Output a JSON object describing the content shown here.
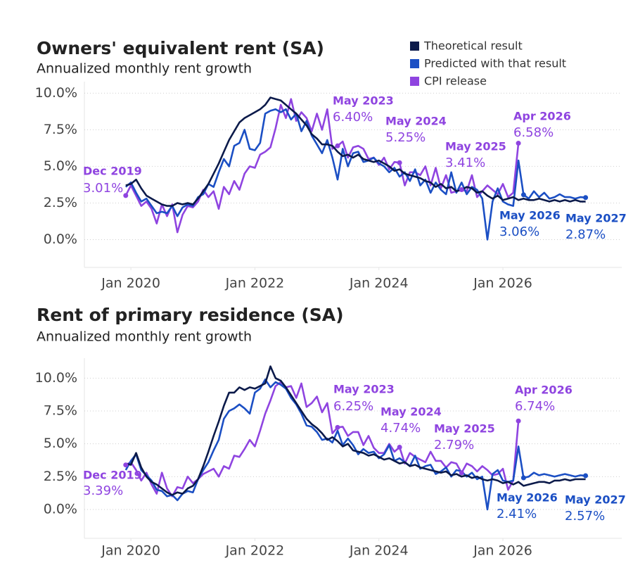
{
  "chart_data": [
    {
      "type": "line",
      "title": "Owners' equivalent rent (SA)",
      "subtitle": "Annualized monthly rent growth",
      "x": [
        "2019-12",
        "2020-01",
        "2020-02",
        "2020-03",
        "2020-04",
        "2020-05",
        "2020-06",
        "2020-07",
        "2020-08",
        "2020-09",
        "2020-10",
        "2020-11",
        "2020-12",
        "2021-01",
        "2021-02",
        "2021-03",
        "2021-04",
        "2021-05",
        "2021-06",
        "2021-07",
        "2021-08",
        "2021-09",
        "2021-10",
        "2021-11",
        "2021-12",
        "2022-01",
        "2022-02",
        "2022-03",
        "2022-04",
        "2022-05",
        "2022-06",
        "2022-07",
        "2022-08",
        "2022-09",
        "2022-10",
        "2022-11",
        "2022-12",
        "2023-01",
        "2023-02",
        "2023-03",
        "2023-04",
        "2023-05",
        "2023-06",
        "2023-07",
        "2023-08",
        "2023-09",
        "2023-10",
        "2023-11",
        "2023-12",
        "2024-01",
        "2024-02",
        "2024-03",
        "2024-04",
        "2024-05",
        "2024-06",
        "2024-07",
        "2024-08",
        "2024-09",
        "2024-10",
        "2024-11",
        "2024-12",
        "2025-01",
        "2025-02",
        "2025-03",
        "2025-04",
        "2025-05",
        "2025-06",
        "2025-07",
        "2025-08",
        "2025-09",
        "2025-10",
        "2025-11",
        "2025-12",
        "2026-01",
        "2026-02",
        "2026-03",
        "2026-04",
        "2026-05",
        "2026-06",
        "2026-07",
        "2026-08",
        "2026-09",
        "2026-10",
        "2026-11",
        "2026-12",
        "2027-01",
        "2027-02",
        "2027-03",
        "2027-04",
        "2027-05"
      ],
      "xlim": [
        "2019-04",
        "2027-12"
      ],
      "xticks": [
        {
          "value": "2020-01",
          "label": "Jan 2020"
        },
        {
          "value": "2022-01",
          "label": "Jan 2022"
        },
        {
          "value": "2024-01",
          "label": "Jan 2024"
        },
        {
          "value": "2026-01",
          "label": "Jan 2026"
        }
      ],
      "ylim": [
        -1.9,
        10.5
      ],
      "yticks": [
        {
          "value": 0,
          "label": "0.0%"
        },
        {
          "value": 2.5,
          "label": "2.5%"
        },
        {
          "value": 5,
          "label": "5.0%"
        },
        {
          "value": 7.5,
          "label": "7.5%"
        },
        {
          "value": 10,
          "label": "10.0%"
        }
      ],
      "grid": true,
      "legend": "top-right",
      "series": [
        {
          "name": "Theoretical result",
          "color": "#0b1a4a",
          "values": [
            3.7,
            3.8,
            4.1,
            3.5,
            3.0,
            2.8,
            2.6,
            2.4,
            2.3,
            2.3,
            2.5,
            2.4,
            2.5,
            2.4,
            2.8,
            3.3,
            3.8,
            4.5,
            5.2,
            6.0,
            6.8,
            7.4,
            8.0,
            8.3,
            8.5,
            8.7,
            8.9,
            9.2,
            9.7,
            9.6,
            9.5,
            9.2,
            8.9,
            8.6,
            8.2,
            7.8,
            7.2,
            6.9,
            6.5,
            6.5,
            6.4,
            6.0,
            5.7,
            5.8,
            5.6,
            5.8,
            5.5,
            5.4,
            5.3,
            5.4,
            5.2,
            5.0,
            4.7,
            4.8,
            4.5,
            4.4,
            4.3,
            4.2,
            4.0,
            3.9,
            3.6,
            3.8,
            3.5,
            3.6,
            3.3,
            3.4,
            3.6,
            3.5,
            3.2,
            3.3,
            3.0,
            2.8,
            3.0,
            2.7,
            2.8,
            2.9,
            2.7,
            2.8,
            2.7,
            2.7,
            2.8,
            2.7,
            2.6,
            2.7,
            2.6,
            2.7,
            2.6,
            2.7,
            2.6,
            2.6
          ]
        },
        {
          "name": "Predicted with that result",
          "color": "#1b4fc4",
          "values": [
            3.6,
            3.9,
            3.2,
            2.6,
            2.8,
            2.3,
            1.8,
            1.9,
            1.8,
            2.3,
            1.6,
            2.2,
            2.4,
            2.3,
            2.9,
            3.1,
            3.8,
            3.6,
            4.6,
            5.5,
            5.0,
            6.4,
            6.6,
            7.5,
            6.2,
            6.1,
            6.6,
            8.6,
            8.8,
            8.9,
            8.7,
            8.9,
            8.2,
            8.6,
            7.4,
            8.1,
            7.1,
            6.5,
            5.9,
            6.8,
            5.6,
            4.1,
            6.2,
            5.0,
            5.9,
            6.0,
            5.3,
            5.4,
            5.6,
            5.2,
            5.0,
            4.6,
            4.9,
            4.3,
            4.6,
            4.0,
            4.8,
            3.7,
            4.1,
            3.2,
            3.9,
            3.4,
            3.1,
            4.6,
            3.2,
            3.9,
            3.1,
            3.6,
            3.4,
            2.8,
            0.0,
            2.6,
            3.5,
            2.6,
            2.4,
            2.3,
            5.4,
            3.06,
            2.8,
            3.3,
            2.9,
            3.2,
            2.8,
            2.9,
            3.1,
            2.9,
            2.9,
            2.8,
            2.9,
            2.87
          ]
        },
        {
          "name": "CPI release",
          "color": "#8f44e0",
          "values": [
            3.01,
            3.7,
            3.0,
            2.3,
            2.6,
            2.1,
            1.1,
            2.4,
            1.6,
            2.4,
            0.5,
            1.7,
            2.3,
            2.2,
            2.6,
            3.4,
            2.9,
            3.3,
            2.1,
            3.6,
            3.1,
            4.0,
            3.4,
            4.5,
            5.0,
            4.9,
            5.8,
            6.0,
            6.3,
            7.6,
            9.2,
            8.3,
            9.6,
            8.1,
            8.7,
            8.3,
            7.4,
            8.6,
            7.5,
            8.9,
            6.2,
            6.4,
            6.7,
            5.6,
            6.3,
            6.4,
            6.2,
            5.5,
            5.6,
            5.1,
            5.6,
            4.8,
            5.3,
            5.25,
            3.7,
            4.6,
            4.6,
            4.4,
            5.0,
            3.7,
            4.9,
            3.5,
            4.4,
            3.2,
            3.3,
            3.41,
            3.3,
            4.4,
            2.9,
            3.3,
            3.7,
            3.4,
            3.1,
            3.8,
            2.9,
            3.2,
            6.58,
            null,
            null,
            null,
            null,
            null,
            null,
            null,
            null,
            null,
            null,
            null,
            null,
            null
          ]
        }
      ],
      "annotations": [
        {
          "x": "2019-12",
          "color": "#8f44e0",
          "label": "Dec 2019",
          "value": 3.01,
          "value_label": "3.01%"
        },
        {
          "x": "2023-05",
          "color": "#8f44e0",
          "label": "May 2023",
          "value": 6.4,
          "value_label": "6.40%"
        },
        {
          "x": "2024-05",
          "color": "#8f44e0",
          "label": "May 2024",
          "value": 5.25,
          "value_label": "5.25%"
        },
        {
          "x": "2025-05",
          "color": "#8f44e0",
          "label": "May 2025",
          "value": 3.41,
          "value_label": "3.41%"
        },
        {
          "x": "2026-04",
          "color": "#8f44e0",
          "label": "Apr 2026",
          "value": 6.58,
          "value_label": "6.58%"
        },
        {
          "x": "2026-05",
          "color": "#1b4fc4",
          "label": "May 2026",
          "value": 3.06,
          "value_label": "3.06%"
        },
        {
          "x": "2027-05",
          "color": "#1b4fc4",
          "label": "May 2027",
          "value": 2.87,
          "value_label": "2.87%"
        }
      ]
    },
    {
      "type": "line",
      "title": "Rent of primary residence (SA)",
      "subtitle": "Annualized monthly rent growth",
      "x": [
        "2019-12",
        "2020-01",
        "2020-02",
        "2020-03",
        "2020-04",
        "2020-05",
        "2020-06",
        "2020-07",
        "2020-08",
        "2020-09",
        "2020-10",
        "2020-11",
        "2020-12",
        "2021-01",
        "2021-02",
        "2021-03",
        "2021-04",
        "2021-05",
        "2021-06",
        "2021-07",
        "2021-08",
        "2021-09",
        "2021-10",
        "2021-11",
        "2021-12",
        "2022-01",
        "2022-02",
        "2022-03",
        "2022-04",
        "2022-05",
        "2022-06",
        "2022-07",
        "2022-08",
        "2022-09",
        "2022-10",
        "2022-11",
        "2022-12",
        "2023-01",
        "2023-02",
        "2023-03",
        "2023-04",
        "2023-05",
        "2023-06",
        "2023-07",
        "2023-08",
        "2023-09",
        "2023-10",
        "2023-11",
        "2023-12",
        "2024-01",
        "2024-02",
        "2024-03",
        "2024-04",
        "2024-05",
        "2024-06",
        "2024-07",
        "2024-08",
        "2024-09",
        "2024-10",
        "2024-11",
        "2024-12",
        "2025-01",
        "2025-02",
        "2025-03",
        "2025-04",
        "2025-05",
        "2025-06",
        "2025-07",
        "2025-08",
        "2025-09",
        "2025-10",
        "2025-11",
        "2025-12",
        "2026-01",
        "2026-02",
        "2026-03",
        "2026-04",
        "2026-05",
        "2026-06",
        "2026-07",
        "2026-08",
        "2026-09",
        "2026-10",
        "2026-11",
        "2026-12",
        "2027-01",
        "2027-02",
        "2027-03",
        "2027-04",
        "2027-05"
      ],
      "xlim": [
        "2019-04",
        "2027-12"
      ],
      "xticks": [
        {
          "value": "2020-01",
          "label": "Jan 2020"
        },
        {
          "value": "2022-01",
          "label": "Jan 2022"
        },
        {
          "value": "2024-01",
          "label": "Jan 2024"
        },
        {
          "value": "2026-01",
          "label": "Jan 2026"
        }
      ],
      "ylim": [
        -2.2,
        11.2
      ],
      "yticks": [
        {
          "value": 0,
          "label": "0.0%"
        },
        {
          "value": 2.5,
          "label": "2.5%"
        },
        {
          "value": 5,
          "label": "5.0%"
        },
        {
          "value": 7.5,
          "label": "7.5%"
        },
        {
          "value": 10,
          "label": "10.0%"
        }
      ],
      "grid": true,
      "series": [
        {
          "color": "#0b1a4a",
          "values": [
            3.5,
            3.4,
            4.3,
            3.2,
            2.5,
            2.1,
            1.9,
            1.6,
            1.3,
            1.1,
            1.3,
            1.2,
            1.6,
            1.8,
            2.3,
            3.3,
            4.4,
            5.6,
            6.7,
            7.9,
            8.9,
            8.9,
            9.3,
            9.1,
            9.3,
            9.2,
            9.4,
            9.6,
            10.9,
            10.0,
            9.8,
            9.3,
            8.7,
            8.1,
            7.5,
            6.9,
            6.5,
            6.2,
            5.8,
            5.3,
            5.5,
            5.2,
            4.8,
            5.0,
            4.5,
            4.4,
            4.3,
            4.1,
            4.2,
            4.0,
            3.8,
            3.9,
            3.7,
            3.5,
            3.6,
            3.3,
            3.4,
            3.2,
            3.1,
            3.0,
            2.9,
            2.8,
            2.9,
            2.6,
            2.7,
            2.5,
            2.6,
            2.4,
            2.5,
            2.3,
            2.2,
            2.3,
            2.2,
            2.0,
            2.1,
            1.9,
            2.1,
            1.8,
            1.9,
            2.0,
            2.1,
            2.1,
            2.0,
            2.2,
            2.2,
            2.3,
            2.2,
            2.3,
            2.3,
            2.3
          ]
        },
        {
          "color": "#1b4fc4",
          "values": [
            3.0,
            3.7,
            4.2,
            3.0,
            2.6,
            2.2,
            1.5,
            1.4,
            1.0,
            1.1,
            0.7,
            1.2,
            1.4,
            1.3,
            2.3,
            3.0,
            3.6,
            4.5,
            5.3,
            6.9,
            7.5,
            7.7,
            8.0,
            7.7,
            7.3,
            8.9,
            9.2,
            9.9,
            9.3,
            9.7,
            9.5,
            9.2,
            8.5,
            8.0,
            7.3,
            6.4,
            6.3,
            5.9,
            5.3,
            5.4,
            5.1,
            6.0,
            4.9,
            5.4,
            4.9,
            4.2,
            4.6,
            4.3,
            4.4,
            3.9,
            4.2,
            4.9,
            3.7,
            3.9,
            3.6,
            3.3,
            4.1,
            3.1,
            3.3,
            3.4,
            2.7,
            2.9,
            3.2,
            2.5,
            3.0,
            2.9,
            2.5,
            2.8,
            2.3,
            2.5,
            0.0,
            2.7,
            3.0,
            2.2,
            2.1,
            2.2,
            4.8,
            2.41,
            2.5,
            2.8,
            2.6,
            2.7,
            2.6,
            2.5,
            2.6,
            2.7,
            2.6,
            2.5,
            2.6,
            2.57
          ]
        },
        {
          "color": "#8f44e0",
          "values": [
            3.39,
            3.6,
            3.0,
            2.2,
            2.8,
            1.9,
            1.2,
            2.8,
            1.6,
            1.0,
            1.7,
            1.6,
            2.5,
            2.0,
            2.3,
            2.7,
            2.9,
            3.1,
            2.5,
            3.3,
            3.1,
            4.1,
            4.0,
            4.6,
            5.3,
            4.8,
            6.0,
            7.3,
            8.3,
            9.4,
            9.7,
            9.3,
            9.4,
            8.5,
            9.6,
            7.8,
            8.1,
            8.6,
            7.4,
            8.1,
            5.8,
            6.25,
            6.3,
            5.6,
            5.9,
            5.9,
            4.9,
            5.6,
            4.7,
            4.3,
            4.3,
            5.0,
            4.4,
            4.74,
            3.5,
            4.3,
            4.0,
            3.8,
            3.6,
            4.4,
            3.7,
            3.7,
            3.2,
            3.6,
            3.5,
            2.79,
            3.5,
            3.3,
            2.9,
            3.3,
            3.0,
            2.6,
            2.7,
            3.1,
            1.5,
            2.2,
            6.74,
            null,
            null,
            null,
            null,
            null,
            null,
            null,
            null,
            null,
            null,
            null,
            null,
            null
          ]
        }
      ],
      "annotations": [
        {
          "x": "2019-12",
          "color": "#8f44e0",
          "label": "Dec 2019",
          "value": 3.39,
          "value_label": "3.39%"
        },
        {
          "x": "2023-05",
          "color": "#8f44e0",
          "label": "May 2023",
          "value": 6.25,
          "value_label": "6.25%"
        },
        {
          "x": "2024-05",
          "color": "#8f44e0",
          "label": "May 2024",
          "value": 4.74,
          "value_label": "4.74%"
        },
        {
          "x": "2025-05",
          "color": "#8f44e0",
          "label": "May 2025",
          "value": 2.79,
          "value_label": "2.79%"
        },
        {
          "x": "2026-04",
          "color": "#8f44e0",
          "label": "Apr 2026",
          "value": 6.74,
          "value_label": "6.74%"
        },
        {
          "x": "2026-05",
          "color": "#1b4fc4",
          "label": "May 2026",
          "value": 2.41,
          "value_label": "2.41%"
        },
        {
          "x": "2027-05",
          "color": "#1b4fc4",
          "label": "May 2027",
          "value": 2.57,
          "value_label": "2.57%"
        }
      ]
    }
  ]
}
